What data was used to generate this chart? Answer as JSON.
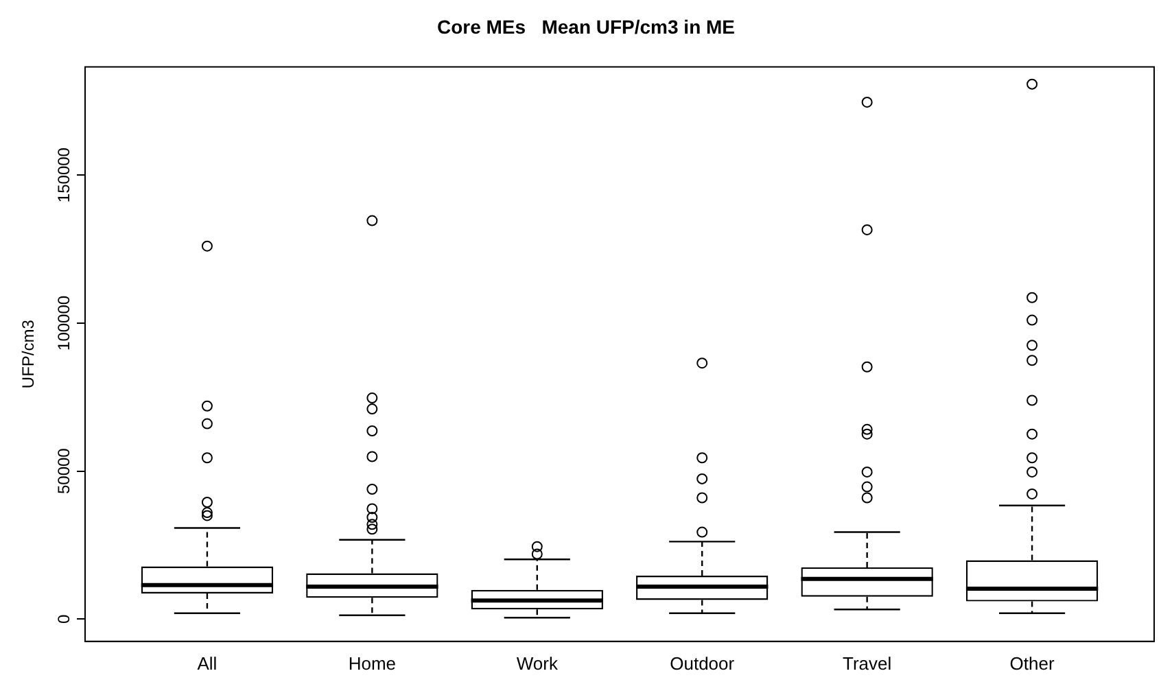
{
  "chart_data": {
    "type": "box",
    "title": "Core MEs   Mean UFP/cm3 in ME",
    "ylabel": "UFP/cm3",
    "categories": [
      "All",
      "Home",
      "Work",
      "Outdoor",
      "Travel",
      "Other"
    ],
    "ylim": [
      -7500,
      186500
    ],
    "yticks": [
      0,
      50000,
      100000,
      150000
    ],
    "grid": false,
    "legend": false,
    "boxes": [
      {
        "low": 2000,
        "q1": 8700,
        "median": 11500,
        "q3": 17800,
        "high": 30800,
        "outliers": [
          126000,
          72000,
          66000,
          54500,
          39500,
          36000,
          35000
        ]
      },
      {
        "low": 1300,
        "q1": 7200,
        "median": 11000,
        "q3": 15500,
        "high": 26800,
        "outliers": [
          134600,
          74700,
          71000,
          63600,
          54900,
          43900,
          37300,
          34400,
          32000,
          30400
        ]
      },
      {
        "low": 500,
        "q1": 3300,
        "median": 6300,
        "q3": 9900,
        "high": 20200,
        "outliers": [
          24500,
          22000
        ]
      },
      {
        "low": 2000,
        "q1": 6500,
        "median": 11000,
        "q3": 14700,
        "high": 26200,
        "outliers": [
          86500,
          54500,
          47400,
          41000,
          29400
        ]
      },
      {
        "low": 3300,
        "q1": 7600,
        "median": 13600,
        "q3": 17500,
        "high": 29400,
        "outliers": [
          174600,
          131500,
          85200,
          64100,
          62500,
          49700,
          44700,
          41000
        ]
      },
      {
        "low": 2000,
        "q1": 6000,
        "median": 10300,
        "q3": 19900,
        "high": 38400,
        "outliers": [
          180700,
          108600,
          101000,
          92500,
          87400,
          73900,
          62500,
          54500,
          49700,
          42300
        ]
      }
    ]
  }
}
